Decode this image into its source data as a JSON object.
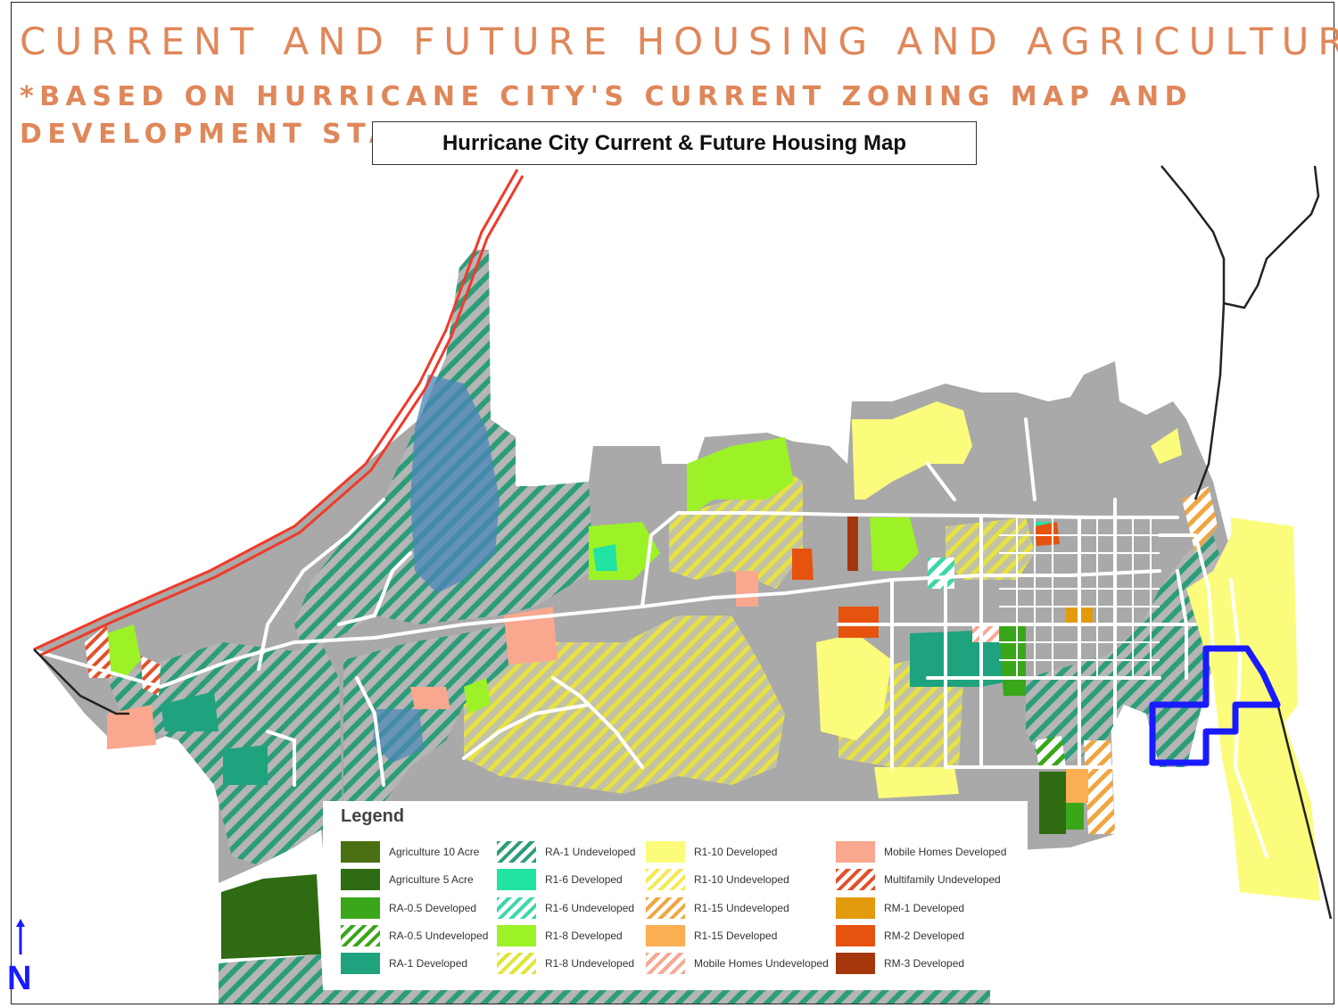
{
  "title": "CURRENT AND FUTURE HOUSING AND AGRICULTURE",
  "subtitle": "*BASED ON HURRICANE CITY'S CURRENT ZONING MAP AND DEVELOPMENT STATUS",
  "map_title": "Hurricane City Current & Future Housing Map",
  "north_label": "N",
  "legend": {
    "title": "Legend",
    "items": [
      {
        "label": "Agriculture 10 Acre",
        "color": "#4a6f12",
        "pattern": "solid"
      },
      {
        "label": "Agriculture 5 Acre",
        "color": "#2f6b12",
        "pattern": "solid"
      },
      {
        "label": "RA-0.5  Developed",
        "color": "#3aa619",
        "pattern": "solid"
      },
      {
        "label": "RA-0.5 Undeveloped",
        "color": "#3aa619",
        "pattern": "hatch"
      },
      {
        "label": "RA-1  Developed",
        "color": "#1fa37e",
        "pattern": "solid"
      },
      {
        "label": "RA-1 Undeveloped",
        "color": "#2c9d7b",
        "pattern": "hatch"
      },
      {
        "label": "R1-6  Developed",
        "color": "#21e3a4",
        "pattern": "solid"
      },
      {
        "label": "R1-6 Undeveloped",
        "color": "#3fd7a9",
        "pattern": "hatch"
      },
      {
        "label": "R1-8  Developed",
        "color": "#9cf227",
        "pattern": "solid"
      },
      {
        "label": "R1-8 Undeveloped",
        "color": "#e0e632",
        "pattern": "hatch"
      },
      {
        "label": "R1-10  Developed",
        "color": "#fcfc7c",
        "pattern": "solid"
      },
      {
        "label": "R1-10 Undeveloped",
        "color": "#f4ea52",
        "pattern": "hatch"
      },
      {
        "label": "R1-15 Undeveloped",
        "color": "#f0a640",
        "pattern": "hatch"
      },
      {
        "label": "R1-15  Developed",
        "color": "#fbae52",
        "pattern": "solid"
      },
      {
        "label": "Mobile Homes Undeveloped",
        "color": "#f7a993",
        "pattern": "hatch"
      },
      {
        "label": "Mobile Homes Developed",
        "color": "#f9a78e",
        "pattern": "solid"
      },
      {
        "label": "Multifamily Undeveloped",
        "color": "#e2512a",
        "pattern": "hatch"
      },
      {
        "label": "RM-1  Developed",
        "color": "#e39a0d",
        "pattern": "solid"
      },
      {
        "label": "RM-2  Developed",
        "color": "#e6530e",
        "pattern": "solid"
      },
      {
        "label": "RM-3  Developed",
        "color": "#a6360c",
        "pattern": "solid"
      }
    ]
  },
  "colors": {
    "title_text": "#e0875a",
    "highway": "#ef3a2a",
    "highlight_outline": "#1a1aff",
    "city_base": "#a9a9a9",
    "road": "#ffffff"
  }
}
